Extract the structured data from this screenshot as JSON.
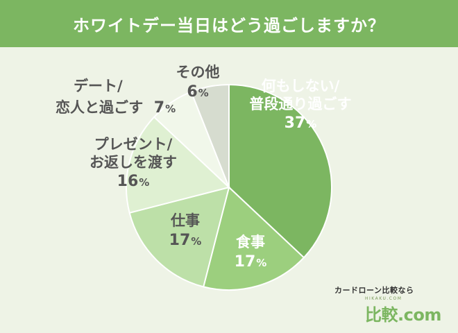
{
  "header": {
    "title": "ホワイトデー当日はどう過ごしますか？"
  },
  "chart_data": {
    "type": "pie",
    "title": "ホワイトデー当日はどう過ごしますか？",
    "unit": "%",
    "slices": [
      {
        "label_lines": [
          "何もしない/",
          "普段通り過ごす"
        ],
        "value": 37,
        "color": "#7cb661",
        "label_color": "#ffffff"
      },
      {
        "label_lines": [
          "食事"
        ],
        "value": 17,
        "color": "#9ccf7e",
        "label_color": "#ffffff"
      },
      {
        "label_lines": [
          "仕事"
        ],
        "value": 17,
        "color": "#bde0a8",
        "label_color": "#555555"
      },
      {
        "label_lines": [
          "プレゼント/",
          "お返しを渡す"
        ],
        "value": 16,
        "color": "#dff0d2",
        "label_color": "#555555"
      },
      {
        "label_lines": [
          "デート/",
          "恋人と過ごす"
        ],
        "value": 7,
        "color": "#f1f7ea",
        "label_color": "#555555"
      },
      {
        "label_lines": [
          "その他"
        ],
        "value": 6,
        "color": "#d6dccf",
        "label_color": "#555555"
      }
    ]
  },
  "logo": {
    "top_text": "カードローン比較なら",
    "sub_text": "HIKAKU.COM",
    "main_text": "比較.com"
  }
}
